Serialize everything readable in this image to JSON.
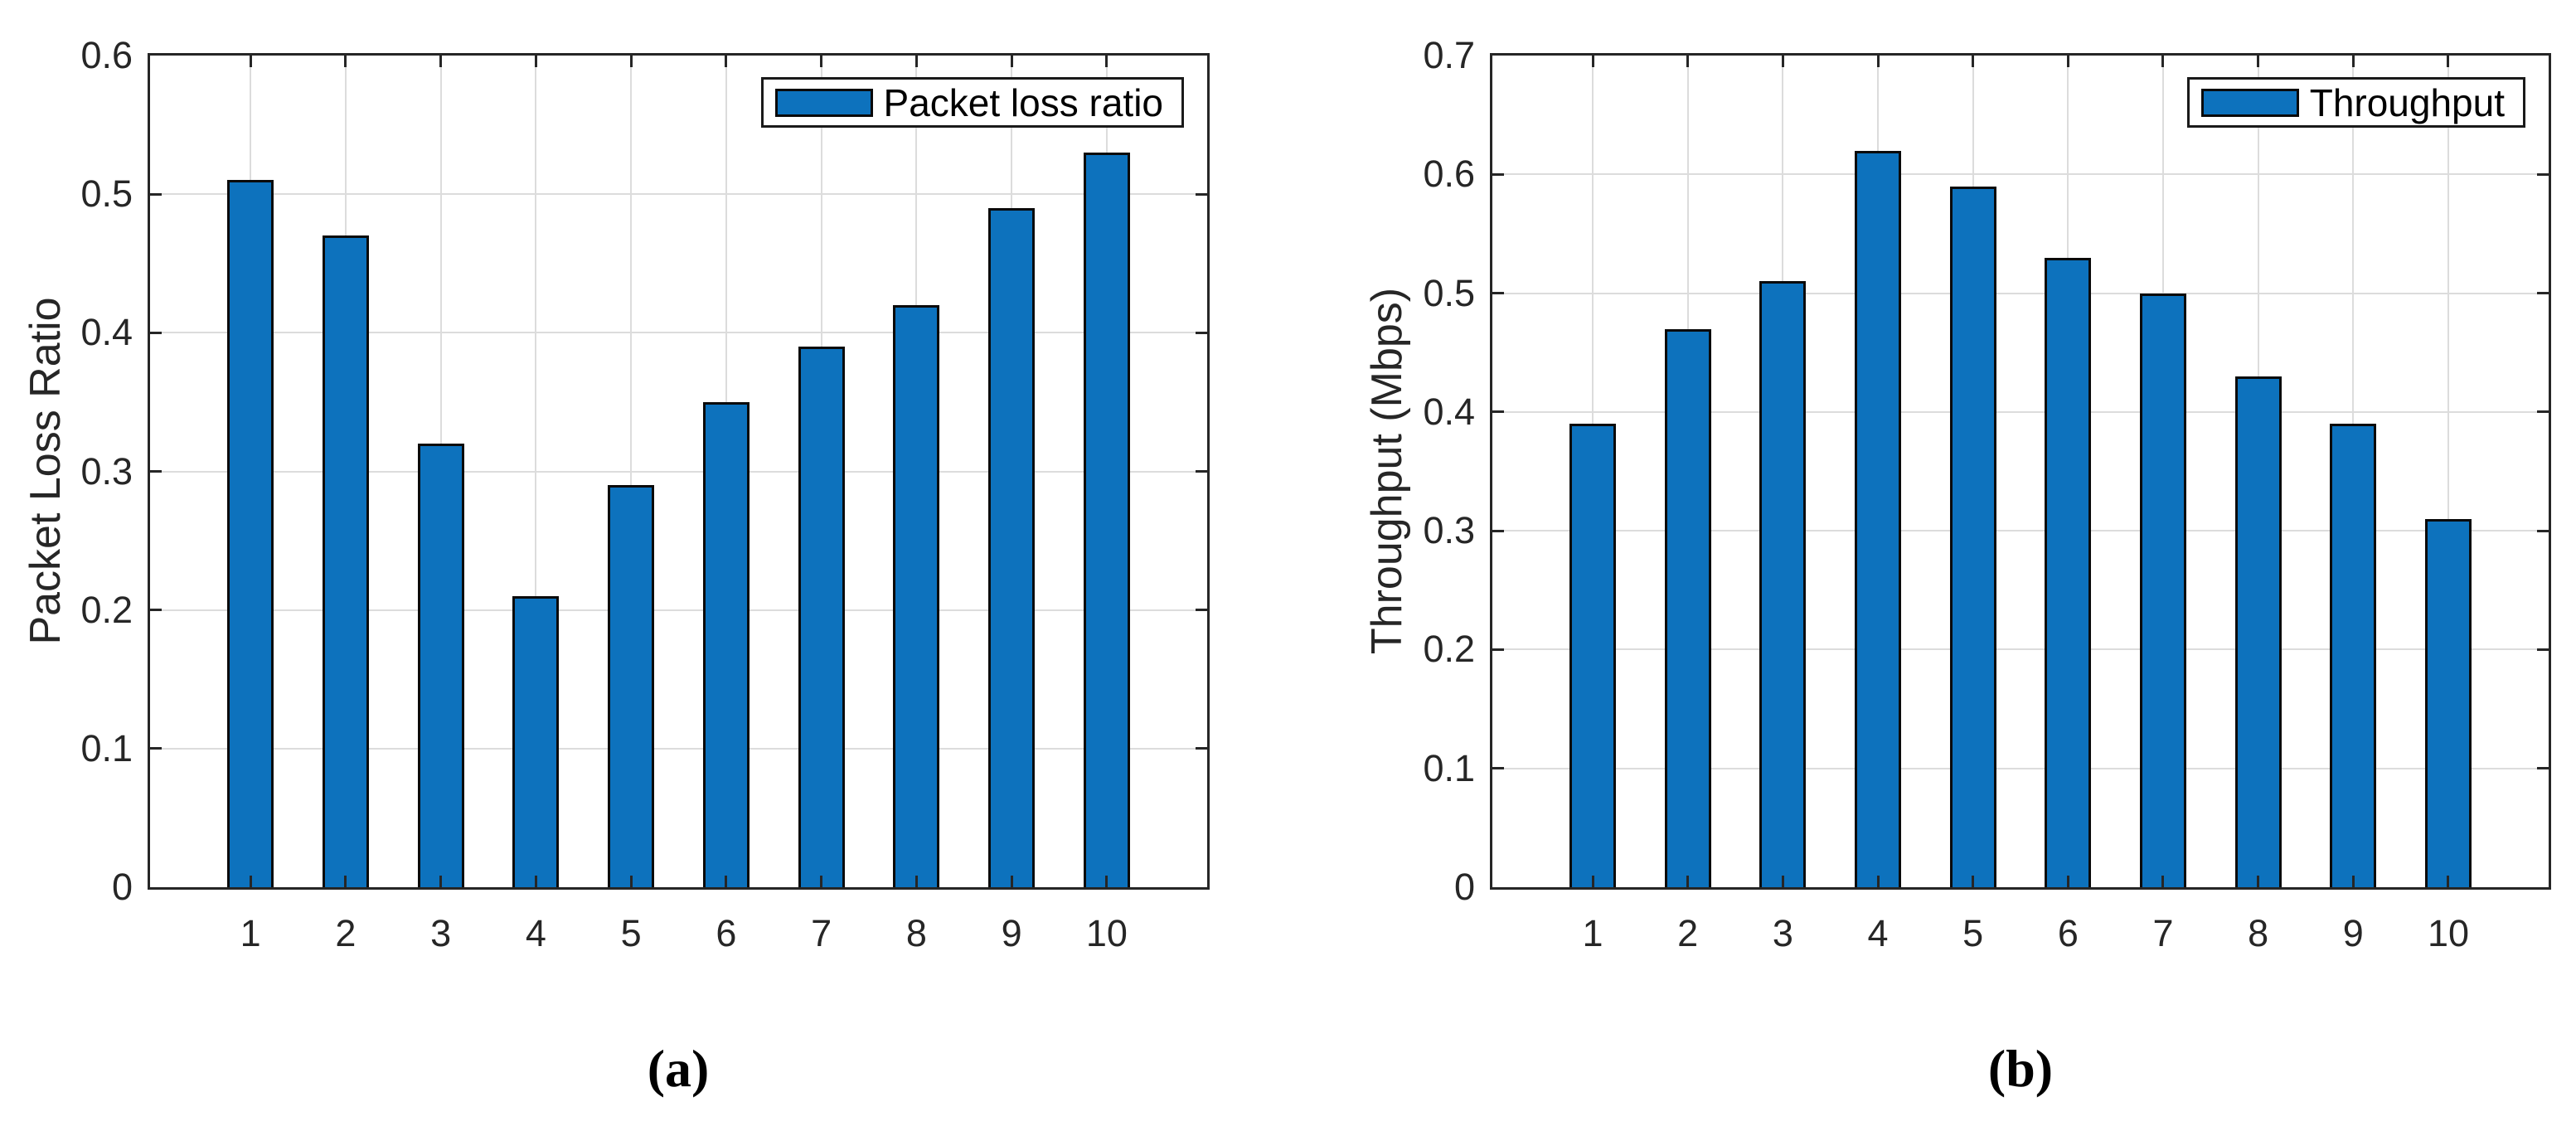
{
  "figure": {
    "background": "#ffffff",
    "bar_fill": "#0d72bd",
    "bar_edge": "#0a0a0a",
    "grid_color": "#dcdcdc",
    "axis_color": "#262626"
  },
  "chart_data": [
    {
      "type": "bar",
      "caption": "(a)",
      "ylabel": "Packet Loss Ratio",
      "xlabel": "",
      "legend": "Packet loss ratio",
      "legend_position": "top-right",
      "grid": true,
      "categories": [
        "1",
        "2",
        "3",
        "4",
        "5",
        "6",
        "7",
        "8",
        "9",
        "10"
      ],
      "values": [
        0.51,
        0.47,
        0.32,
        0.21,
        0.29,
        0.35,
        0.39,
        0.42,
        0.49,
        0.53
      ],
      "ylim": [
        0,
        0.6
      ],
      "ytick_step": 0.1,
      "ytick_labels": [
        "0",
        "0.1",
        "0.2",
        "0.3",
        "0.4",
        "0.5",
        "0.6"
      ]
    },
    {
      "type": "bar",
      "caption": "(b)",
      "ylabel": "Throughput (Mbps)",
      "xlabel": "",
      "legend": "Throughput",
      "legend_position": "top-right",
      "grid": true,
      "categories": [
        "1",
        "2",
        "3",
        "4",
        "5",
        "6",
        "7",
        "8",
        "9",
        "10"
      ],
      "values": [
        0.39,
        0.47,
        0.51,
        0.62,
        0.59,
        0.53,
        0.5,
        0.43,
        0.39,
        0.31
      ],
      "ylim": [
        0,
        0.7
      ],
      "ytick_step": 0.1,
      "ytick_labels": [
        "0",
        "0.1",
        "0.2",
        "0.3",
        "0.4",
        "0.5",
        "0.6",
        "0.7"
      ]
    }
  ]
}
